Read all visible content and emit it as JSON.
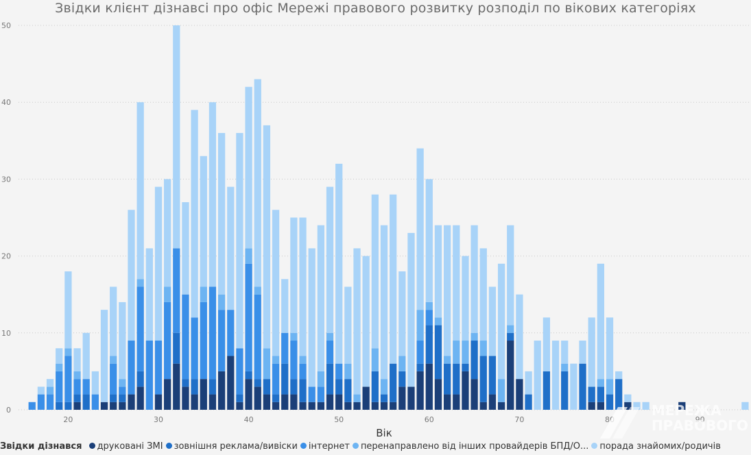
{
  "chart_data": {
    "type": "bar",
    "stacked": true,
    "title": "Звідки клієнт дізнавсі про офіс Мережі правового розвитку розподіл по вікових категоріях",
    "xlabel": "Вік",
    "ylabel": "",
    "xlim": [
      14.5,
      95.5
    ],
    "ylim": [
      0,
      50
    ],
    "xticks": [
      20,
      30,
      40,
      50,
      60,
      70,
      80,
      90
    ],
    "yticks": [
      0,
      10,
      20,
      30,
      40,
      50
    ],
    "grid": true,
    "legend_title": "Звідки дізнався",
    "legend_position": "bottom",
    "x": [
      16,
      17,
      18,
      19,
      20,
      21,
      22,
      23,
      24,
      25,
      26,
      27,
      28,
      29,
      30,
      31,
      32,
      33,
      34,
      35,
      36,
      37,
      38,
      39,
      40,
      41,
      42,
      43,
      44,
      45,
      46,
      47,
      48,
      49,
      50,
      51,
      52,
      53,
      54,
      55,
      56,
      57,
      58,
      59,
      60,
      61,
      62,
      63,
      64,
      65,
      66,
      67,
      68,
      69,
      70,
      71,
      72,
      73,
      74,
      75,
      76,
      77,
      78,
      79,
      80,
      81,
      82,
      83,
      84,
      85,
      86,
      87,
      88,
      89,
      90,
      91,
      92,
      93,
      94,
      95
    ],
    "series": [
      {
        "name": "друковані ЗМІ",
        "color": "#1b3f78",
        "values": [
          0,
          0,
          0,
          0,
          0,
          1,
          0,
          0,
          1,
          1,
          1,
          2,
          3,
          0,
          2,
          4,
          6,
          3,
          2,
          4,
          2,
          5,
          7,
          1,
          4,
          3,
          2,
          1,
          2,
          2,
          1,
          1,
          1,
          2,
          2,
          1,
          1,
          3,
          1,
          1,
          1,
          3,
          3,
          5,
          6,
          4,
          2,
          2,
          5,
          4,
          1,
          2,
          1,
          9,
          4,
          0,
          0,
          0,
          0,
          0,
          0,
          0,
          1,
          1,
          0,
          0,
          1,
          0,
          0,
          0,
          0,
          0,
          1,
          0,
          0,
          0,
          0,
          0,
          0,
          0
        ]
      },
      {
        "name": "зовнішня реклама/вивіски",
        "color": "#1f6fc8",
        "values": [
          0,
          0,
          0,
          1,
          1,
          1,
          2,
          0,
          0,
          1,
          1,
          0,
          2,
          0,
          0,
          0,
          4,
          1,
          2,
          0,
          2,
          0,
          0,
          1,
          1,
          1,
          2,
          1,
          4,
          2,
          3,
          0,
          0,
          4,
          2,
          3,
          0,
          0,
          4,
          1,
          5,
          2,
          0,
          1,
          5,
          7,
          4,
          4,
          1,
          5,
          6,
          5,
          0,
          1,
          0,
          2,
          0,
          5,
          0,
          5,
          0,
          6,
          2,
          2,
          2,
          4,
          0,
          0,
          0,
          0,
          0,
          0,
          0,
          0,
          0,
          0,
          0,
          0,
          0,
          0
        ]
      },
      {
        "name": "інтернет",
        "color": "#3a8fe8",
        "values": [
          1,
          2,
          2,
          4,
          6,
          2,
          2,
          2,
          0,
          4,
          1,
          7,
          11,
          9,
          7,
          10,
          11,
          11,
          8,
          10,
          12,
          8,
          6,
          6,
          14,
          11,
          0,
          4,
          4,
          5,
          2,
          2,
          2,
          3,
          2,
          0,
          0,
          0,
          0,
          0,
          0,
          0,
          0,
          3,
          2,
          0,
          0,
          0,
          0,
          0,
          0,
          0,
          0,
          0,
          0,
          0,
          0,
          0,
          0,
          0,
          0,
          0,
          0,
          0,
          0,
          0,
          0,
          0,
          0,
          0,
          0,
          0,
          0,
          0,
          0,
          0,
          0,
          0,
          0,
          0
        ]
      },
      {
        "name": "перенаправлено від інших провайдерів БПД/О...",
        "color": "#6db4f2",
        "values": [
          0,
          0,
          1,
          1,
          1,
          1,
          0,
          0,
          0,
          1,
          1,
          0,
          1,
          0,
          0,
          2,
          0,
          0,
          0,
          2,
          0,
          2,
          0,
          0,
          2,
          1,
          4,
          1,
          0,
          1,
          1,
          0,
          2,
          1,
          0,
          2,
          1,
          0,
          3,
          2,
          0,
          2,
          0,
          4,
          1,
          1,
          1,
          3,
          3,
          1,
          2,
          0,
          3,
          1,
          0,
          0,
          0,
          0,
          0,
          1,
          0,
          0,
          0,
          1,
          2,
          0,
          0,
          0,
          0,
          0,
          0,
          0,
          0,
          0,
          0,
          0,
          0,
          0,
          0,
          0
        ]
      },
      {
        "name": "порада знайомих/родичів",
        "color": "#a8d3f8",
        "values": [
          0,
          1,
          1,
          2,
          10,
          3,
          6,
          3,
          12,
          9,
          10,
          17,
          23,
          12,
          20,
          14,
          29,
          12,
          27,
          17,
          24,
          21,
          16,
          28,
          21,
          27,
          29,
          19,
          7,
          15,
          18,
          18,
          19,
          19,
          26,
          10,
          19,
          17,
          20,
          20,
          22,
          11,
          20,
          21,
          16,
          12,
          17,
          15,
          11,
          14,
          12,
          9,
          15,
          13,
          11,
          3,
          9,
          7,
          9,
          3,
          6,
          3,
          9,
          15,
          8,
          1,
          1,
          1,
          1,
          0,
          0,
          0,
          0,
          0,
          0,
          0,
          0,
          0,
          0,
          1
        ]
      }
    ]
  },
  "watermark": {
    "line1": "МЕРЕЖА",
    "line2": "ПРАВОВОГО"
  }
}
